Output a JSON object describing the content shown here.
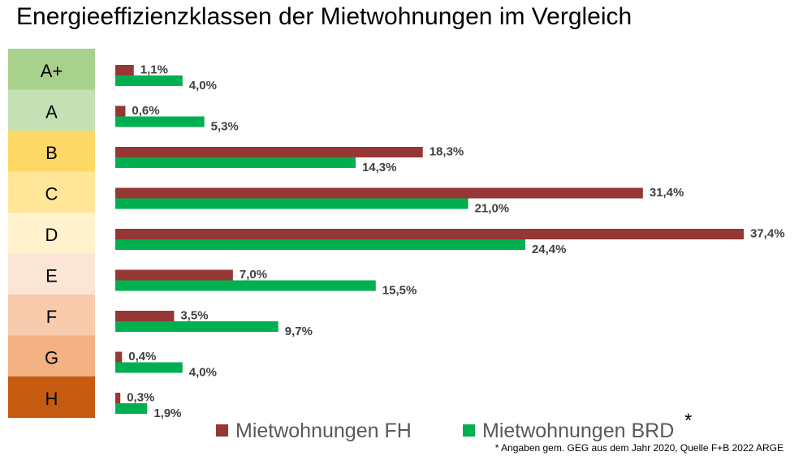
{
  "chart_data": {
    "type": "bar",
    "title": "Energieeffizienzklassen der Mietwohnungen im Vergleich",
    "categories": [
      "A+",
      "A",
      "B",
      "C",
      "D",
      "E",
      "F",
      "G",
      "H"
    ],
    "category_colors": [
      "#a9d18e",
      "#c5e0b4",
      "#ffd966",
      "#ffe699",
      "#fff2cc",
      "#fbe5d6",
      "#f8cbad",
      "#f4b183",
      "#c55a11"
    ],
    "series": [
      {
        "name": "Mietwohnungen FH",
        "color": "#953735",
        "values": [
          1.1,
          0.6,
          18.3,
          31.4,
          37.4,
          7.0,
          3.5,
          0.4,
          0.3
        ],
        "labels": [
          "1,1%",
          "0,6%",
          "18,3%",
          "31,4%",
          "37,4%",
          "7,0%",
          "3,5%",
          "0,4%",
          "0,3%"
        ]
      },
      {
        "name": "Mietwohnungen BRD",
        "color": "#00b050",
        "values": [
          4.0,
          5.3,
          14.3,
          21.0,
          24.4,
          15.5,
          9.7,
          4.0,
          1.9
        ],
        "labels": [
          "4,0%",
          "5,3%",
          "14,3%",
          "21,0%",
          "24,4%",
          "15,5%",
          "9,7%",
          "4,0%",
          "1,9%"
        ]
      }
    ],
    "xlim": [
      0,
      37.4
    ],
    "grid": false,
    "legend_position": "bottom-right",
    "legend_asterisk": "*",
    "footnote": "* Angaben gem. GEG aus dem Jahr 2020, Quelle F+B 2022 ARGE",
    "text_color": "#404040",
    "legend_text_color": "#595959"
  }
}
